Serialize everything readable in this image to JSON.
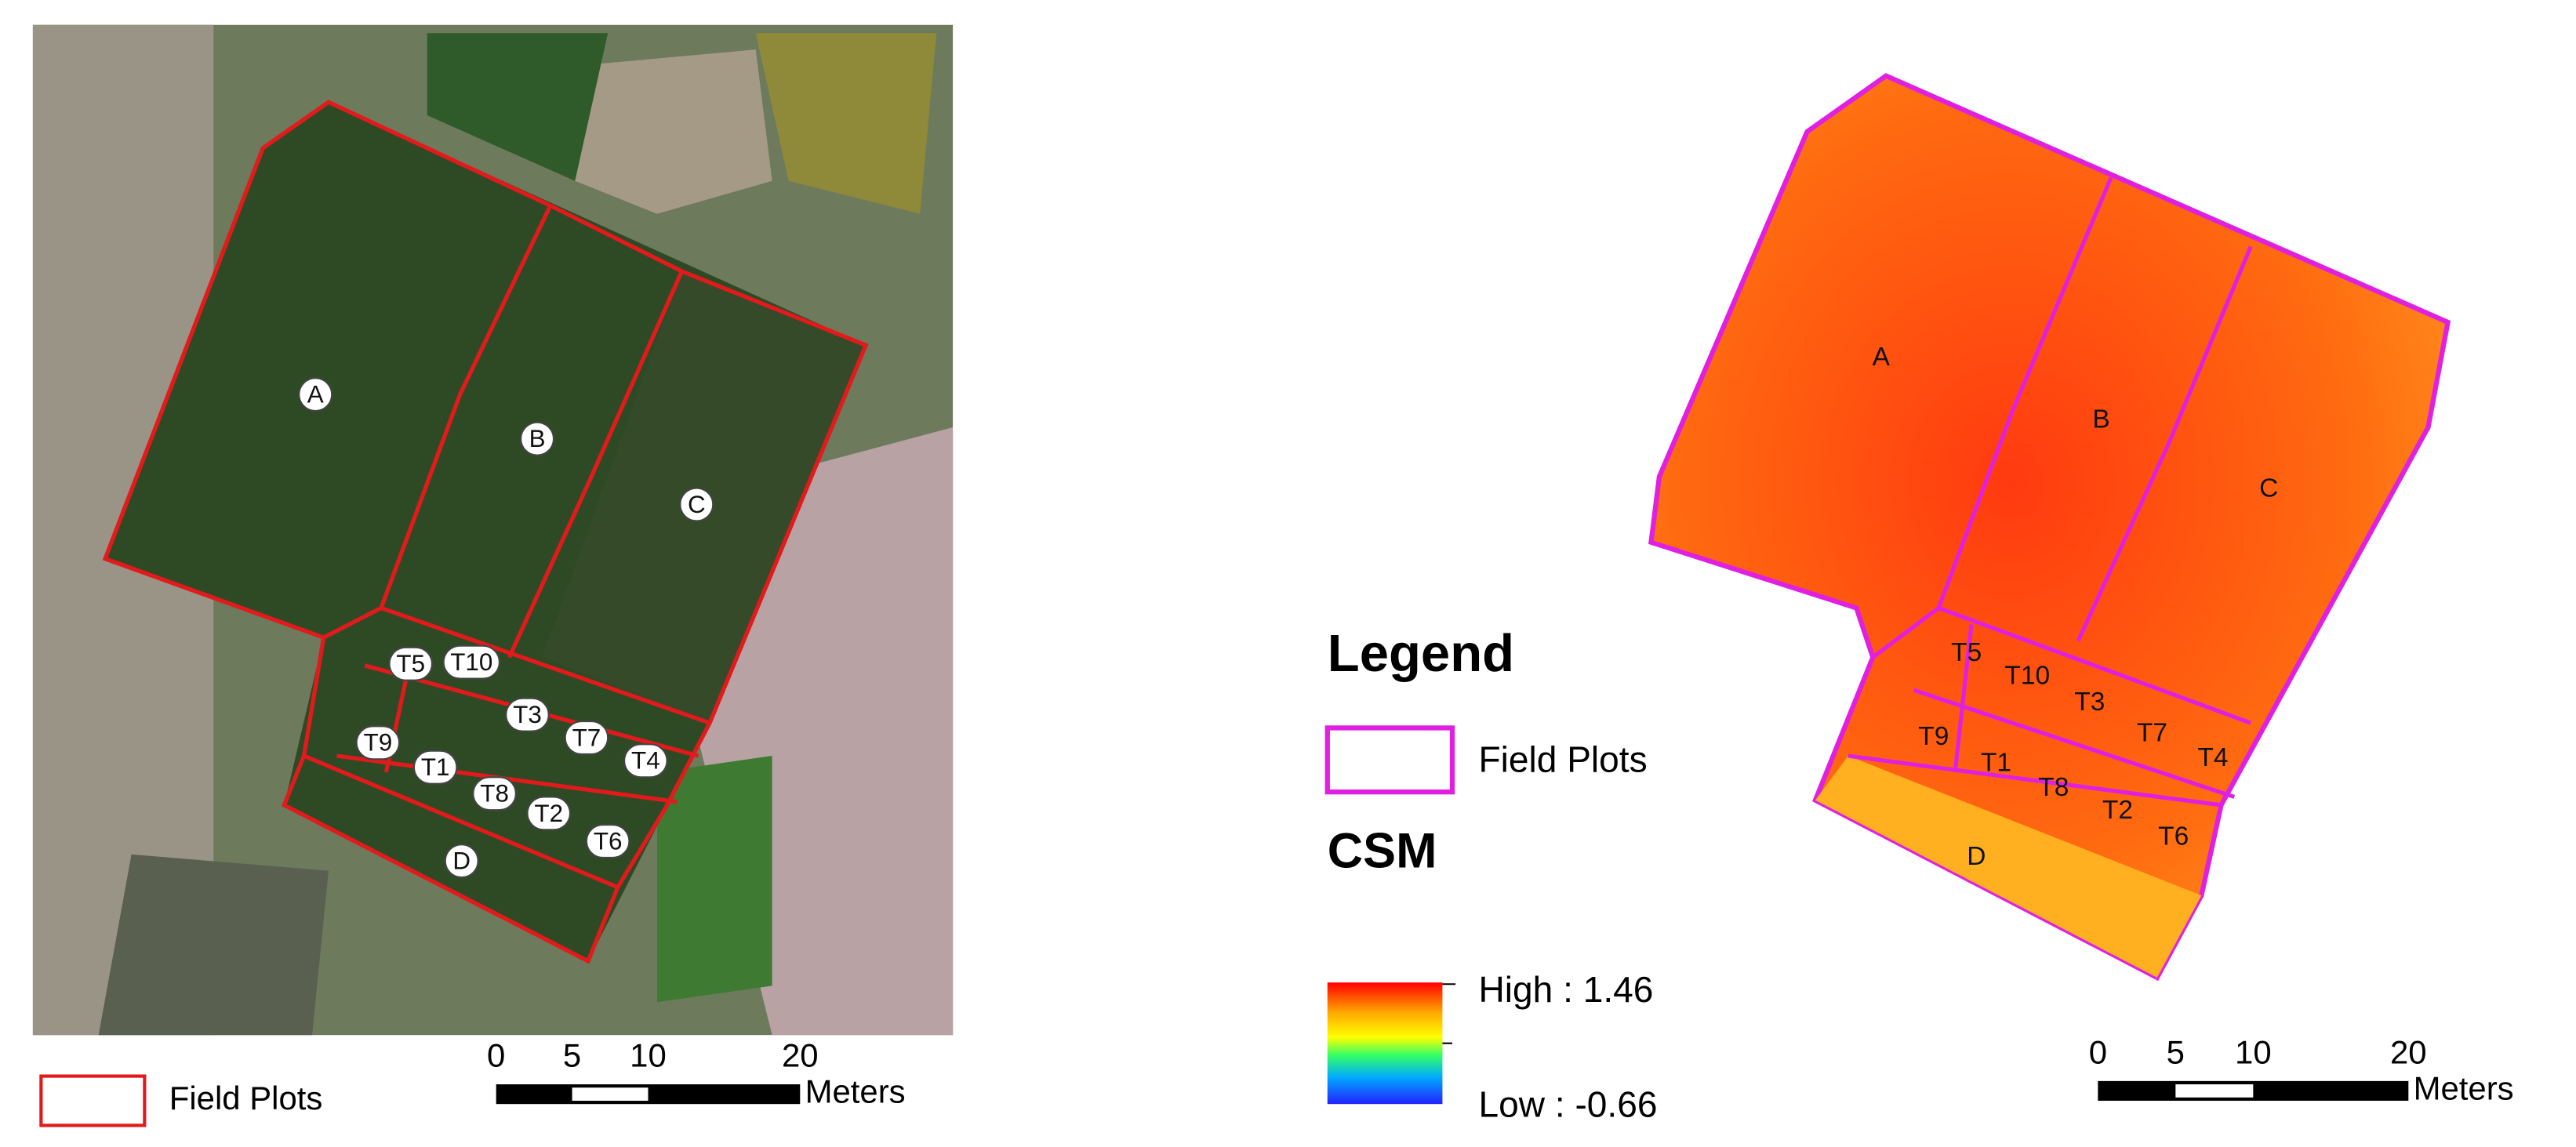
{
  "left_map": {
    "plot_labels": [
      "A",
      "B",
      "C",
      "D",
      "T1",
      "T2",
      "T3",
      "T4",
      "T5",
      "T6",
      "T7",
      "T8",
      "T9",
      "T10"
    ],
    "legend": {
      "label": "Field Plots"
    },
    "scale_bar": {
      "ticks": [
        0,
        5,
        10,
        20
      ],
      "unit": "Meters"
    }
  },
  "right_map": {
    "plot_labels": [
      "A",
      "B",
      "C",
      "D",
      "T1",
      "T2",
      "T3",
      "T4",
      "T5",
      "T6",
      "T7",
      "T8",
      "T9",
      "T10"
    ],
    "legend": {
      "title": "Legend",
      "field_plots": "Field Plots",
      "layer": "CSM",
      "high": "High : 1.46",
      "low": "Low : -0.66"
    },
    "scale_bar": {
      "ticks": [
        0,
        5,
        10,
        20
      ],
      "unit": "Meters"
    }
  }
}
